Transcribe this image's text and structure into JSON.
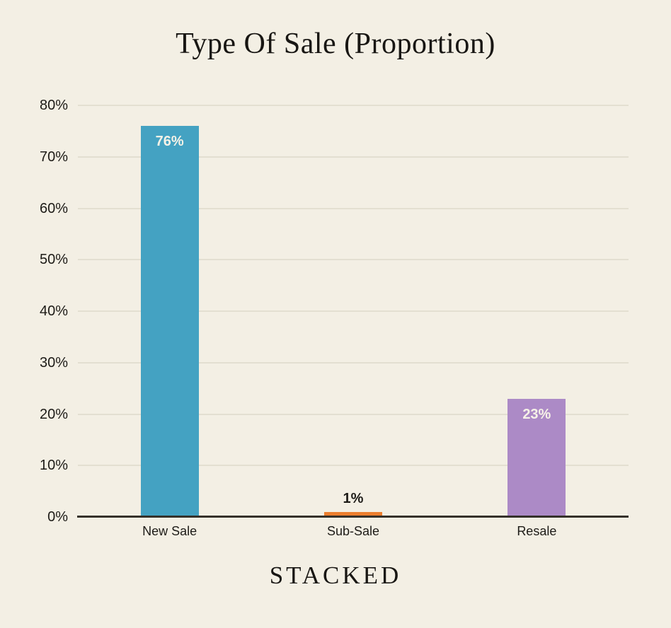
{
  "header": {
    "title": "Type Of Sale (Proportion)"
  },
  "footer": {
    "brand": "STACKED"
  },
  "colors": {
    "background": "#F3EFE4",
    "gridline": "#E3DFD1",
    "axis_line": "#35312A",
    "tick_label": "#1D1B17",
    "category_label": "#1D1B17",
    "value_label_inside": "#F6F2E7",
    "value_label_outside": "#1D1B17",
    "title": "#181613",
    "brand": "#181613"
  },
  "chart_data": {
    "type": "bar",
    "title": "Type Of Sale (Proportion)",
    "categories": [
      "New Sale",
      "Sub-Sale",
      "Resale"
    ],
    "values": [
      76,
      1,
      23
    ],
    "value_labels": [
      "76%",
      "1%",
      "23%"
    ],
    "bar_colors": [
      "#44A2C2",
      "#EC7E2E",
      "#AC8AC6"
    ],
    "xlabel": "",
    "ylabel": "",
    "ylim": [
      0,
      80
    ],
    "ytick_interval": 10,
    "ytick_labels": [
      "0%",
      "10%",
      "20%",
      "30%",
      "40%",
      "50%",
      "60%",
      "70%",
      "80%"
    ],
    "grid": true,
    "legend": "none"
  }
}
